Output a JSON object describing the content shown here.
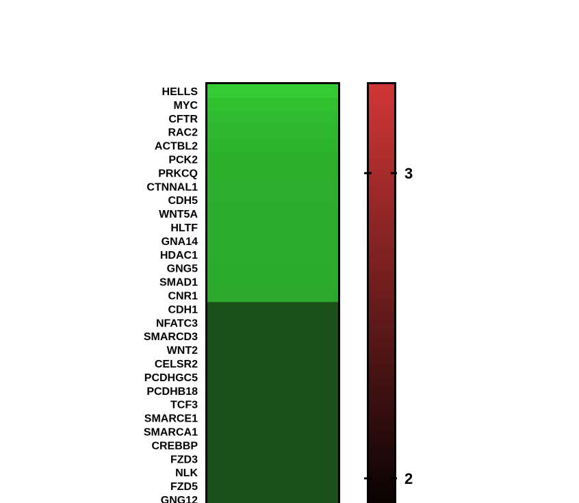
{
  "chart_data": {
    "type": "heatmap",
    "title": "",
    "xlabel": "",
    "ylabel": "",
    "rows": [
      "HELLS",
      "MYC",
      "CFTR",
      "RAC2",
      "ACTBL2",
      "PCK2",
      "PRKCQ",
      "CTNNAL1",
      "CDH5",
      "WNT5A",
      "HLTF",
      "GNA14",
      "HDAC1",
      "GNG5",
      "SMAD1",
      "CNR1",
      "CDH1",
      "NFATC3",
      "SMARCD3",
      "WNT2",
      "CELSR2",
      "PCDHGC5",
      "PCDHB18",
      "TCF3",
      "SMARCE1",
      "SMARCA1",
      "CREBBP",
      "FZD3",
      "NLK",
      "FZD5",
      "GNG12"
    ],
    "cell_colors": [
      "#33cc33",
      "#30c030",
      "#2fbb2f",
      "#2eb72e",
      "#2db42d",
      "#2cb02c",
      "#2cb02c",
      "#2cae2c",
      "#2cad2c",
      "#2cac2c",
      "#2cac2c",
      "#2cab2c",
      "#2cab2c",
      "#2caa2c",
      "#2caa2c",
      "#2ca92c",
      "#1a501a",
      "#1a501a",
      "#1a501a",
      "#1a501a",
      "#1a501a",
      "#1a501a",
      "#1a501a",
      "#1a501a",
      "#1a501a",
      "#1a501a",
      "#1a501a",
      "#1a501a",
      "#1a501a",
      "#1a501a",
      "#1a501a"
    ],
    "colorbar": {
      "color_high": "#d13636",
      "color_low": "#000000",
      "ticks": [
        3,
        2
      ],
      "tick_labels": [
        "3",
        "2"
      ]
    }
  }
}
